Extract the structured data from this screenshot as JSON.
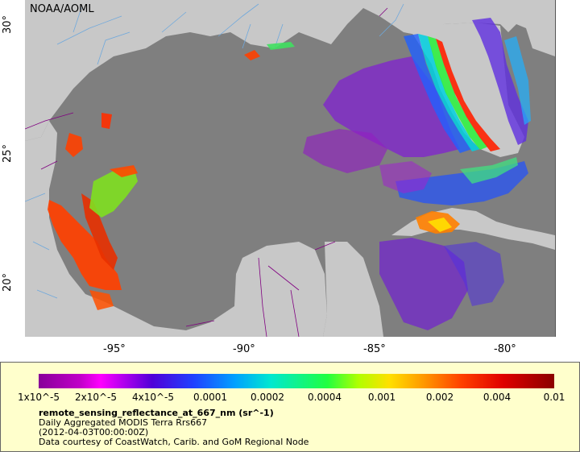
{
  "map": {
    "credit": "NOAA/AOML",
    "lat_ticks": [
      "30°",
      "25°",
      "20°"
    ],
    "lon_ticks": [
      "-95°",
      "-90°",
      "-85°",
      "-80°"
    ]
  },
  "legend": {
    "tick_labels": [
      "1x10^-5",
      "2x10^-5",
      "4x10^-5",
      "0.0001",
      "0.0002",
      "0.0004",
      "0.001",
      "0.002",
      "0.004",
      "0.01"
    ],
    "title": "remote_sensing_reflectance_at_667_nm (sr^-1)",
    "dataset": "Daily Aggregated MODIS Terra Rrs667",
    "time": "(2012-04-03T00:00:00Z)",
    "courtesy": "Data courtesy of CoastWatch, Carib. and GoM Regional Node"
  },
  "colors": {
    "ocean": "#7f7f7f",
    "land": "#c8c8c8",
    "legend_bg": "#ffffcc",
    "border": "#800080",
    "river": "#6fa8dc"
  }
}
